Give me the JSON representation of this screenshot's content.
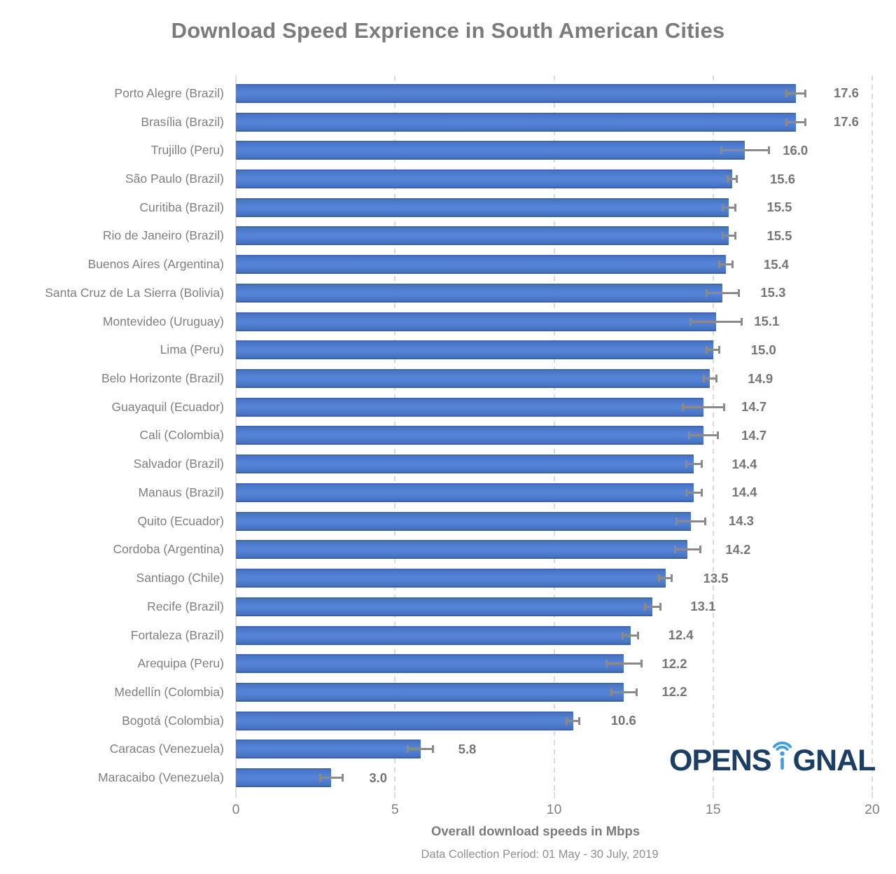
{
  "title": "Download Speed Exprience in South American Cities",
  "footer": "Data Collection Period: 01 May - 30 July, 2019",
  "logo": {
    "text_left": "OPENS",
    "text_right": "GNAL",
    "name": "OPENSIGNAL",
    "navy_color": "#1d3e63",
    "blue_color": "#3f9fe0"
  },
  "chart_data": {
    "type": "bar",
    "orientation": "horizontal",
    "title": "Download Speed Exprience in South American Cities",
    "xlabel": "Overall download speeds in Mbps",
    "ylabel": "",
    "xlim": [
      0,
      20
    ],
    "xticks": [
      0,
      5,
      10,
      15,
      20
    ],
    "grid": "vertical-dashed",
    "legend": "none",
    "bar_color": "#4472c4",
    "gridline_color": "#d9d9d9",
    "text_color": "#7f7f7f",
    "error_bar_color": "#8a8a8a",
    "categories": [
      "Porto Alegre (Brazil)",
      "Brasília (Brazil)",
      "Trujillo (Peru)",
      "São Paulo (Brazil)",
      "Curitiba (Brazil)",
      "Rio de Janeiro (Brazil)",
      "Buenos Aires (Argentina)",
      "Santa Cruz de La Sierra (Bolivia)",
      "Montevideo (Uruguay)",
      "Lima (Peru)",
      "Belo Horizonte (Brazil)",
      "Guayaquil (Ecuador)",
      "Cali (Colombia)",
      "Salvador (Brazil)",
      "Manaus (Brazil)",
      "Quito (Ecuador)",
      "Cordoba (Argentina)",
      "Santiago (Chile)",
      "Recife (Brazil)",
      "Fortaleza (Brazil)",
      "Arequipa (Peru)",
      "Medellín (Colombia)",
      "Bogotá (Colombia)",
      "Caracas (Venezuela)",
      "Maracaibo (Venezuela)"
    ],
    "values": [
      17.6,
      17.6,
      16.0,
      15.6,
      15.5,
      15.5,
      15.4,
      15.3,
      15.1,
      15.0,
      14.9,
      14.7,
      14.7,
      14.4,
      14.4,
      14.3,
      14.2,
      13.5,
      13.1,
      12.4,
      12.2,
      12.2,
      10.6,
      5.8,
      3.0
    ],
    "value_labels": [
      "17.6",
      "17.6",
      "16.0",
      "15.6",
      "15.5",
      "15.5",
      "15.4",
      "15.3",
      "15.1",
      "15.0",
      "14.9",
      "14.7",
      "14.7",
      "14.4",
      "14.4",
      "14.3",
      "14.2",
      "13.5",
      "13.1",
      "12.4",
      "12.2",
      "12.2",
      "10.6",
      "5.8",
      "3.0"
    ],
    "error_bars": [
      0.3,
      0.3,
      0.75,
      0.15,
      0.2,
      0.2,
      0.2,
      0.5,
      0.8,
      0.2,
      0.2,
      0.65,
      0.45,
      0.25,
      0.25,
      0.45,
      0.4,
      0.2,
      0.25,
      0.25,
      0.55,
      0.4,
      0.2,
      0.4,
      0.35
    ]
  }
}
